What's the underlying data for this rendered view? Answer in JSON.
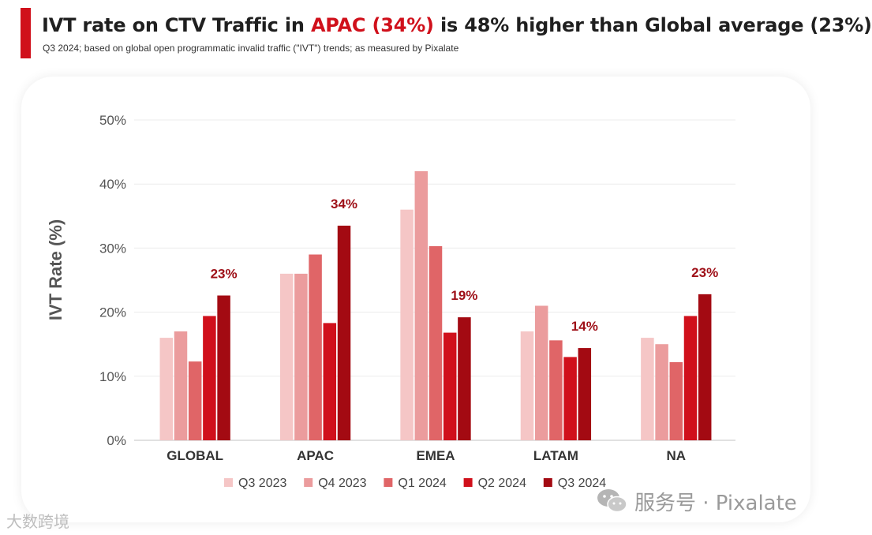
{
  "header": {
    "title_part1": "IVT rate on CTV Traffic in ",
    "title_highlight": "APAC (34%)",
    "title_part2": " is 48% higher than Global average (23%)",
    "subtitle": "Q3 2024; based on global open programmatic invalid traffic (\"IVT\") trends; as measured by Pixalate"
  },
  "watermarks": {
    "left": "大数跨境",
    "right": "服务号 · Pixalate"
  },
  "colors": {
    "accent": "#d0101b",
    "grid": "#ececec",
    "axis": "#555555",
    "label_red": "#9e0f17"
  },
  "chart_data": {
    "type": "bar",
    "title": "IVT rate on CTV Traffic in APAC (34%) is 48% higher than Global average (23%)",
    "xlabel": "",
    "ylabel": "IVT Rate (%)",
    "ylim": [
      0,
      50
    ],
    "yticks": [
      0,
      10,
      20,
      30,
      40,
      50
    ],
    "ytick_labels": [
      "0%",
      "10%",
      "20%",
      "30%",
      "40%",
      "50%"
    ],
    "grid": true,
    "legend_position": "bottom",
    "categories": [
      "GLOBAL",
      "APAC",
      "EMEA",
      "LATAM",
      "NA"
    ],
    "series": [
      {
        "name": "Q3 2023",
        "color": "#f5c6c6",
        "values": [
          16,
          26,
          36,
          17,
          16
        ]
      },
      {
        "name": "Q4 2023",
        "color": "#eb9c9d",
        "values": [
          17,
          26,
          42,
          21,
          15
        ]
      },
      {
        "name": "Q1 2024",
        "color": "#e06567",
        "values": [
          12.3,
          29,
          30.3,
          15.6,
          12.2
        ]
      },
      {
        "name": "Q2 2024",
        "color": "#d0101b",
        "values": [
          19.4,
          18.3,
          16.8,
          13,
          19.4
        ]
      },
      {
        "name": "Q3 2024",
        "color": "#a30a12",
        "values": [
          22.6,
          33.5,
          19.2,
          14.4,
          22.8
        ]
      }
    ],
    "annotations": [
      {
        "category": "GLOBAL",
        "series": "Q3 2024",
        "text": "23%"
      },
      {
        "category": "APAC",
        "series": "Q3 2024",
        "text": "34%"
      },
      {
        "category": "EMEA",
        "series": "Q3 2024",
        "text": "19%"
      },
      {
        "category": "LATAM",
        "series": "Q3 2024",
        "text": "14%"
      },
      {
        "category": "NA",
        "series": "Q3 2024",
        "text": "23%"
      }
    ]
  }
}
